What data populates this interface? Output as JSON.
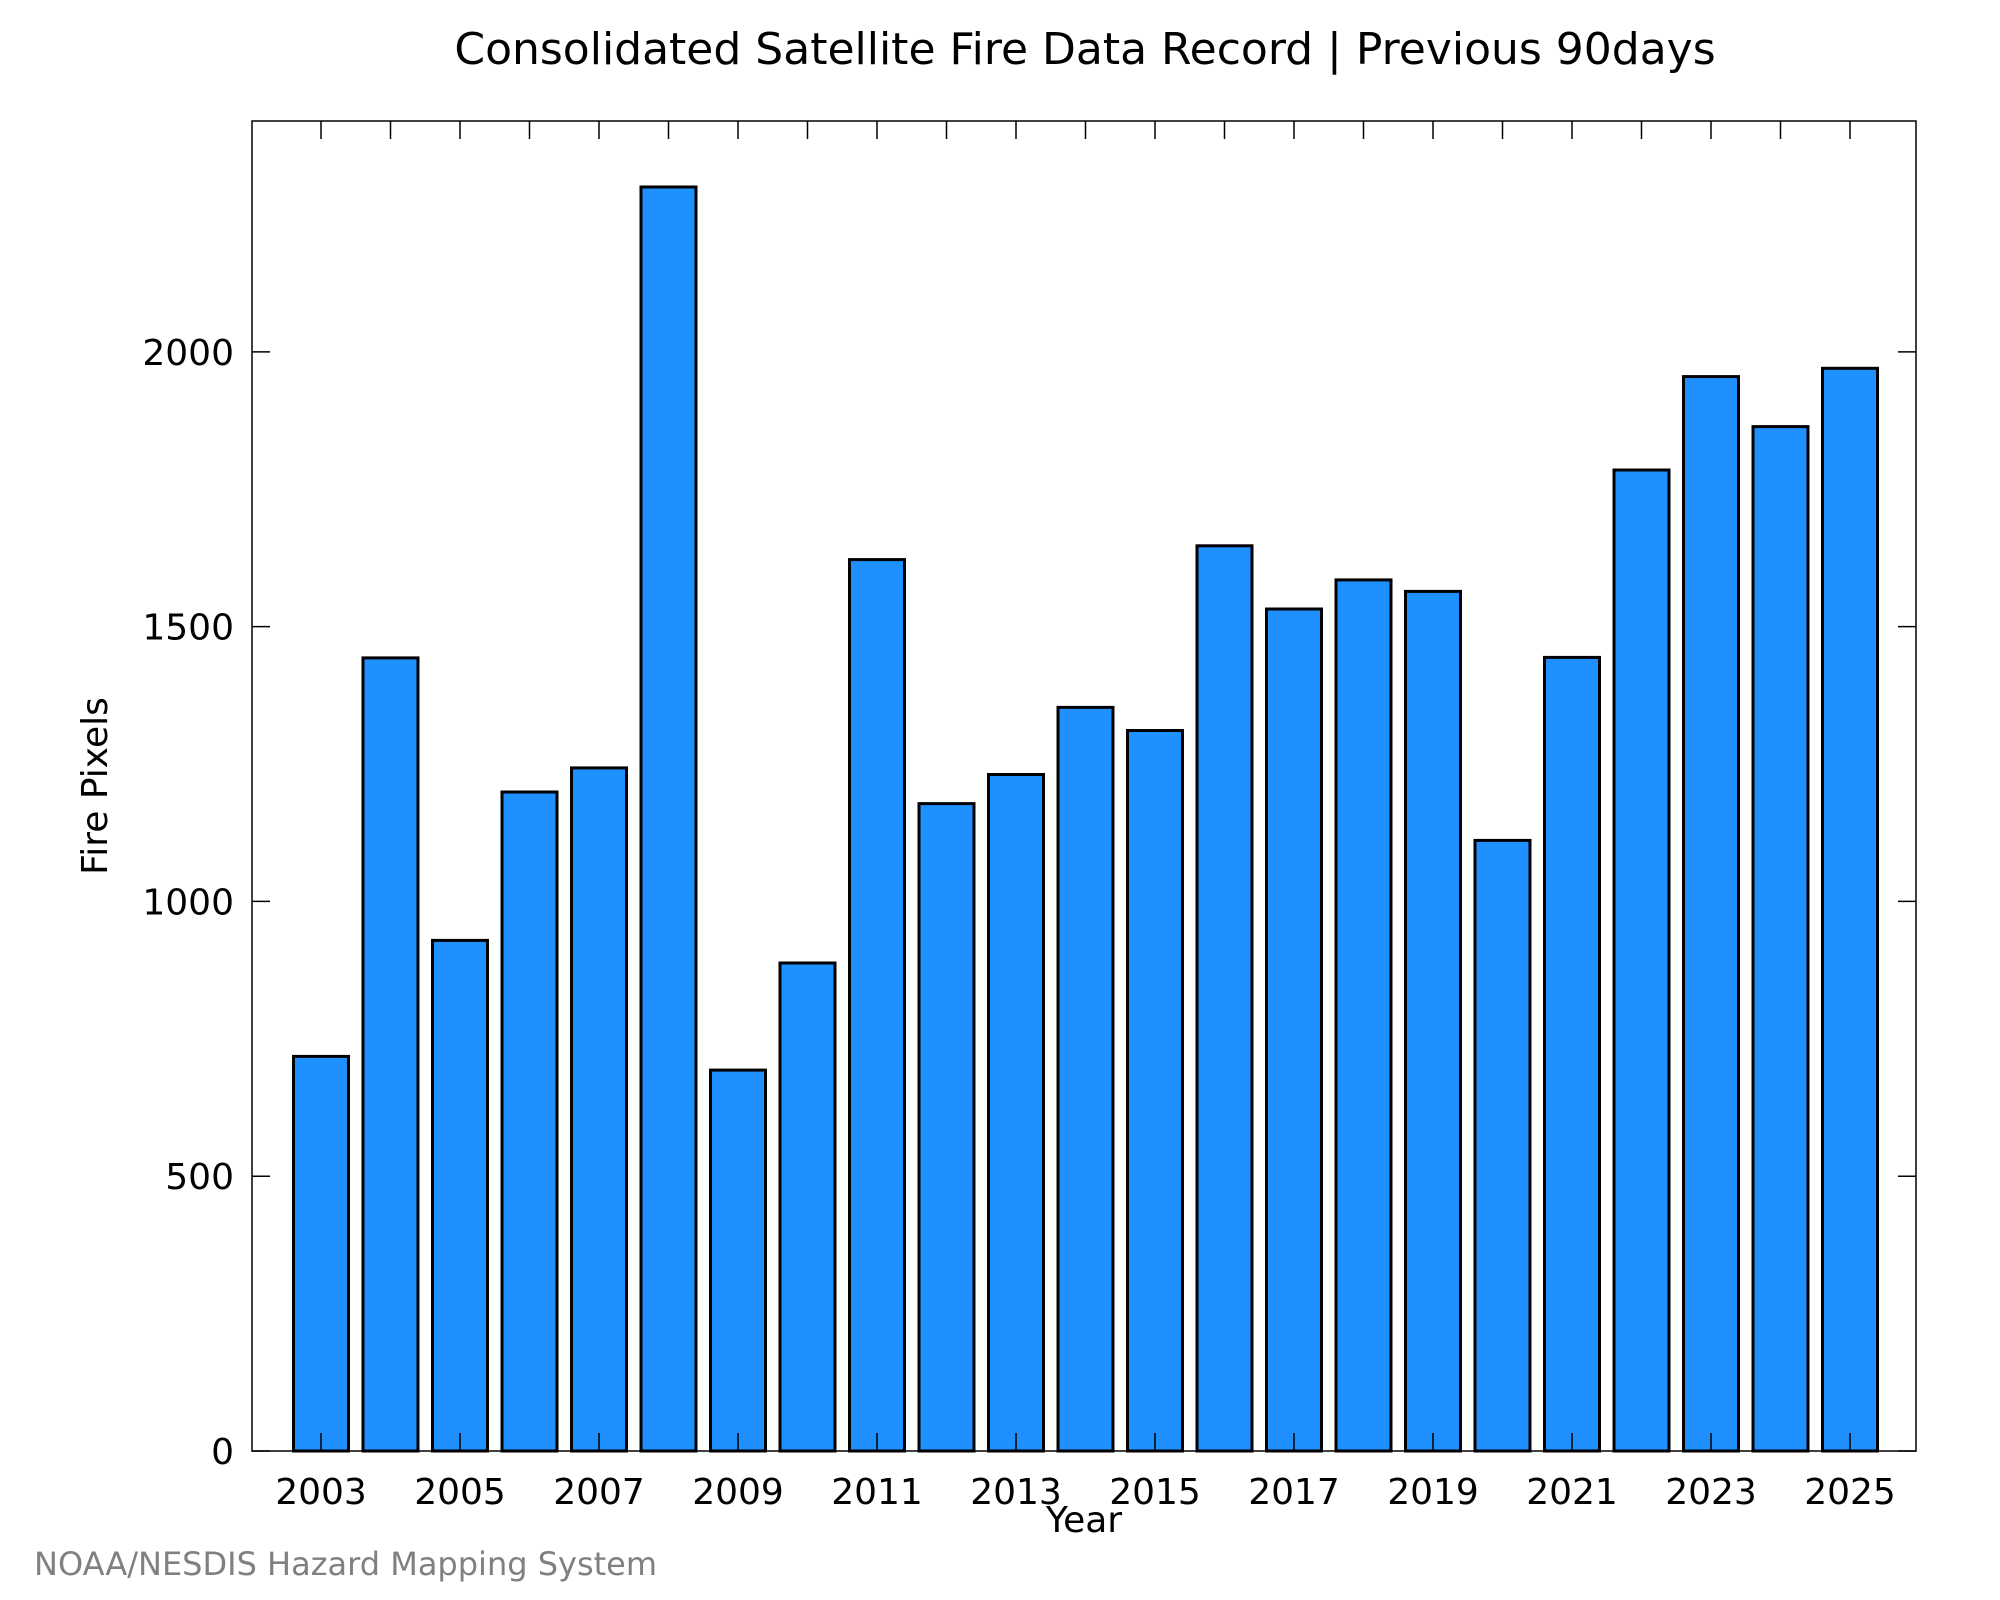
{
  "chart_data": {
    "type": "bar",
    "title": "Consolidated Satellite Fire Data Record | Previous 90days",
    "xlabel": "Year",
    "ylabel": "Fire Pixels",
    "credit": "NOAA/NESDIS Hazard Mapping System",
    "categories": [
      "2003",
      "2004",
      "2005",
      "2006",
      "2007",
      "2008",
      "2009",
      "2010",
      "2011",
      "2012",
      "2013",
      "2014",
      "2015",
      "2016",
      "2017",
      "2018",
      "2019",
      "2020",
      "2021",
      "2022",
      "2023",
      "2024",
      "2025"
    ],
    "values": [
      718,
      1443,
      929,
      1199,
      1243,
      2300,
      693,
      888,
      1622,
      1178,
      1231,
      1353,
      1311,
      1647,
      1532,
      1585,
      1564,
      1111,
      1444,
      1785,
      1955,
      1864,
      1970
    ],
    "xtick_labels": [
      "2003",
      "2005",
      "2007",
      "2009",
      "2011",
      "2013",
      "2015",
      "2017",
      "2019",
      "2021",
      "2023",
      "2025"
    ],
    "yticks": [
      0,
      500,
      1000,
      1500,
      2000
    ],
    "ylim": [
      0,
      2420
    ],
    "bar_color": "#1e90ff",
    "edge_color": "#000000",
    "grid": false
  }
}
